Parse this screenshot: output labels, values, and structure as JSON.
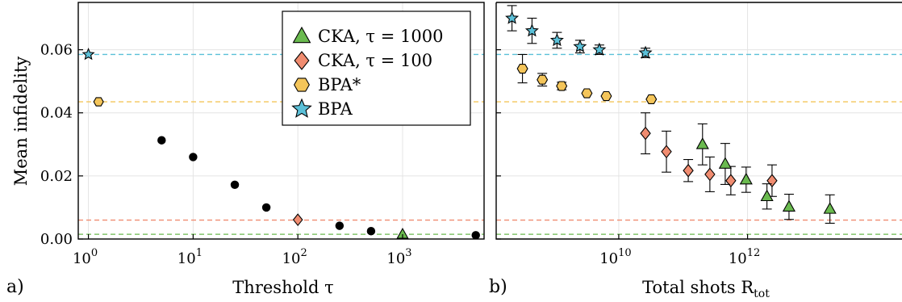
{
  "chart_data": [
    {
      "panel_label": "a)",
      "type": "scatter",
      "xscale": "log",
      "xlabel": "Threshold τ",
      "ylabel": "Mean infidelity",
      "xlim": [
        0.8,
        6000
      ],
      "ylim": [
        0,
        0.075
      ],
      "xticks": [
        {
          "value": 1,
          "label": "10",
          "exp": "0"
        },
        {
          "value": 10,
          "label": "10",
          "exp": "1"
        },
        {
          "value": 100,
          "label": "10",
          "exp": "2"
        },
        {
          "value": 1000,
          "label": "10",
          "exp": "3"
        }
      ],
      "yticks": [
        {
          "value": 0,
          "label": "0.00"
        },
        {
          "value": 0.02,
          "label": "0.02"
        },
        {
          "value": 0.04,
          "label": "0.04"
        },
        {
          "value": 0.06,
          "label": "0.06"
        }
      ],
      "grid": true,
      "hlines": [
        {
          "y": 0.0585,
          "color": "#5bc0d8"
        },
        {
          "y": 0.0435,
          "color": "#f4c55a"
        },
        {
          "y": 0.006,
          "color": "#f08c70"
        },
        {
          "y": 0.0015,
          "color": "#6aba4f"
        }
      ],
      "points": [
        {
          "x": 1.0,
          "y": 0.0585,
          "marker": "star",
          "color": "#5bc0d8"
        },
        {
          "x": 1.25,
          "y": 0.0435,
          "marker": "hexagon",
          "color": "#f4c55a"
        },
        {
          "x": 5,
          "y": 0.0313,
          "marker": "circle",
          "color": "#000000"
        },
        {
          "x": 10,
          "y": 0.026,
          "marker": "circle",
          "color": "#000000"
        },
        {
          "x": 25,
          "y": 0.0172,
          "marker": "circle",
          "color": "#000000"
        },
        {
          "x": 50,
          "y": 0.01,
          "marker": "circle",
          "color": "#000000"
        },
        {
          "x": 100,
          "y": 0.0061,
          "marker": "diamond",
          "color": "#f08c70"
        },
        {
          "x": 250,
          "y": 0.0042,
          "marker": "circle",
          "color": "#000000"
        },
        {
          "x": 500,
          "y": 0.0025,
          "marker": "circle",
          "color": "#000000"
        },
        {
          "x": 1000,
          "y": 0.0015,
          "marker": "triangle",
          "color": "#6aba4f"
        },
        {
          "x": 5000,
          "y": 0.0012,
          "marker": "circle",
          "color": "#000000"
        }
      ],
      "legend": {
        "placement": "top-right",
        "entries": [
          {
            "label": "CKA, τ = 1000",
            "marker": "triangle",
            "color": "#6aba4f"
          },
          {
            "label": "CKA, τ = 100",
            "marker": "diamond",
            "color": "#f08c70"
          },
          {
            "label": "BPA*",
            "marker": "hexagon",
            "color": "#f4c55a"
          },
          {
            "label": "BPA",
            "marker": "star",
            "color": "#5bc0d8"
          }
        ]
      }
    },
    {
      "panel_label": "b)",
      "type": "scatter",
      "xscale": "log",
      "xlabel": "Total shots R",
      "xlabel_sub": "tot",
      "ylabel": "",
      "xlim": [
        125000000.0,
        250000000000000.0
      ],
      "ylim": [
        0,
        0.075
      ],
      "xticks": [
        {
          "value": 10000000000.0,
          "label": "10",
          "exp": "10"
        },
        {
          "value": 1000000000000.0,
          "label": "10",
          "exp": "12"
        }
      ],
      "yticks": [
        {
          "value": 0
        },
        {
          "value": 0.02
        },
        {
          "value": 0.04
        },
        {
          "value": 0.06
        }
      ],
      "grid": true,
      "hlines": [
        {
          "y": 0.0585,
          "color": "#5bc0d8"
        },
        {
          "y": 0.0435,
          "color": "#f4c55a"
        },
        {
          "y": 0.006,
          "color": "#f08c70"
        },
        {
          "y": 0.0015,
          "color": "#6aba4f"
        }
      ],
      "series": [
        {
          "name": "BPA",
          "marker": "star",
          "color": "#5bc0d8",
          "points": [
            {
              "x": 220000000.0,
              "y": 0.07,
              "err": 0.004
            },
            {
              "x": 450000000.0,
              "y": 0.066,
              "err": 0.004
            },
            {
              "x": 1100000000.0,
              "y": 0.063,
              "err": 0.0025
            },
            {
              "x": 2500000000.0,
              "y": 0.061,
              "err": 0.002
            },
            {
              "x": 5000000000.0,
              "y": 0.06,
              "err": 0.0015
            },
            {
              "x": 26000000000.0,
              "y": 0.059,
              "err": 0.0015
            }
          ]
        },
        {
          "name": "BPA*",
          "marker": "hexagon",
          "color": "#f4c55a",
          "points": [
            {
              "x": 320000000.0,
              "y": 0.054,
              "err": 0.0045
            },
            {
              "x": 650000000.0,
              "y": 0.0505,
              "err": 0.002
            },
            {
              "x": 1300000000.0,
              "y": 0.0485,
              "err": 0.0012
            },
            {
              "x": 3200000000.0,
              "y": 0.0462,
              "err": 0
            },
            {
              "x": 6400000000.0,
              "y": 0.0453,
              "err": 0
            },
            {
              "x": 32000000000.0,
              "y": 0.0443,
              "err": 0
            }
          ]
        },
        {
          "name": "CKA, τ = 100",
          "marker": "diamond",
          "color": "#f08c70",
          "points": [
            {
              "x": 26000000000.0,
              "y": 0.0335,
              "err": 0.0065
            },
            {
              "x": 55000000000.0,
              "y": 0.0277,
              "err": 0.0065
            },
            {
              "x": 120000000000.0,
              "y": 0.0217,
              "err": 0.0035
            },
            {
              "x": 260000000000.0,
              "y": 0.0205,
              "err": 0.0055
            },
            {
              "x": 550000000000.0,
              "y": 0.0185,
              "err": 0.0045
            },
            {
              "x": 2400000000000.0,
              "y": 0.0185,
              "err": 0.005
            }
          ]
        },
        {
          "name": "CKA, τ = 1000",
          "marker": "triangle",
          "color": "#6aba4f",
          "points": [
            {
              "x": 200000000000.0,
              "y": 0.03,
              "err": 0.0065
            },
            {
              "x": 450000000000.0,
              "y": 0.0238,
              "err": 0.0065
            },
            {
              "x": 950000000000.0,
              "y": 0.0188,
              "err": 0.004
            },
            {
              "x": 2000000000000.0,
              "y": 0.0135,
              "err": 0.004
            },
            {
              "x": 4400000000000.0,
              "y": 0.0102,
              "err": 0.004
            },
            {
              "x": 19000000000000.0,
              "y": 0.0095,
              "err": 0.0045
            }
          ]
        }
      ]
    }
  ]
}
